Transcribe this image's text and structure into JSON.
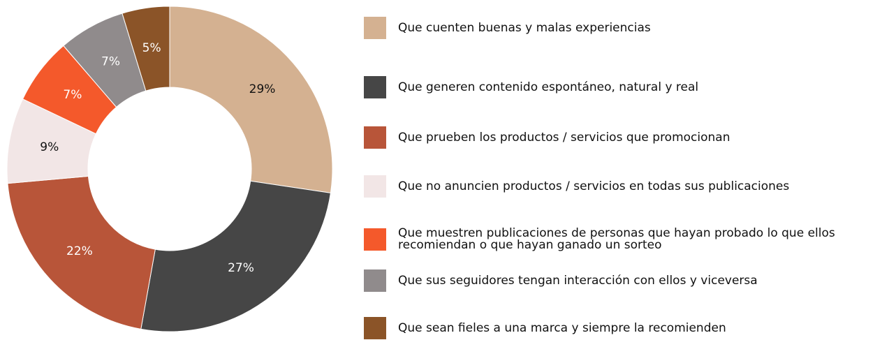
{
  "chart_data": {
    "type": "donut",
    "categories": [
      "Que cuenten buenas y malas experiencias",
      "Que generen contenido espontáneo, natural y real",
      "Que prueben los productos / servicios que promocionan",
      "Que no anuncien productos / servicios en todas sus publicaciones",
      "Que muestren publicaciones de personas que hayan probado lo que ellos recomiendan o que hayan ganado un sorteo",
      "Que sus seguidores tengan interacción con ellos y viceversa",
      "Que sean fieles a una marca y siempre la recomienden"
    ],
    "values": [
      29,
      27,
      22,
      9,
      7,
      7,
      5
    ],
    "value_labels": [
      "29%",
      "27%",
      "22%",
      "9%",
      "7%",
      "7%",
      "5%"
    ],
    "colors": [
      "#d4b191",
      "#464646",
      "#b85539",
      "#f2e6e6",
      "#f4592b",
      "#908b8c",
      "#8b5428"
    ],
    "legend": "right"
  }
}
